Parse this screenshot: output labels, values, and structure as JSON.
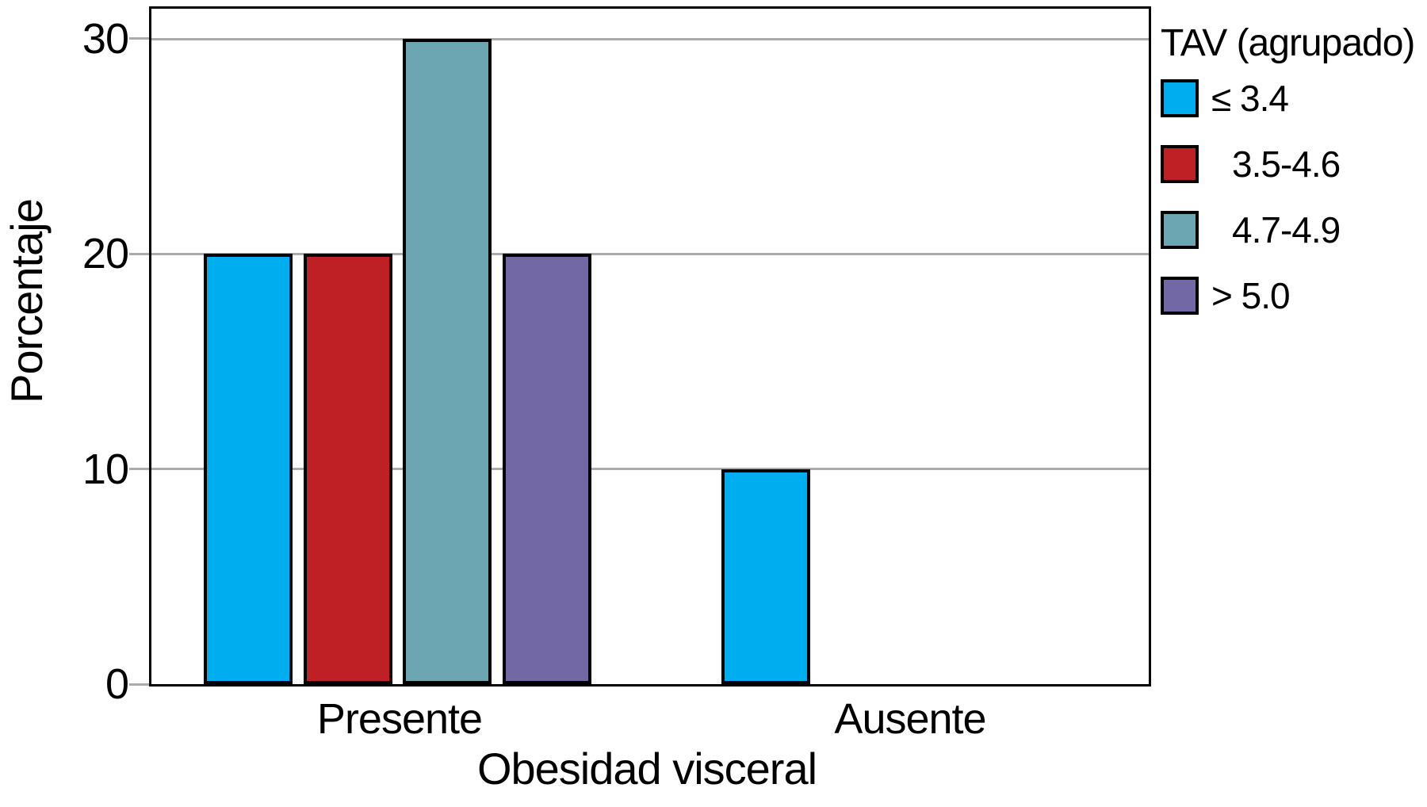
{
  "chart_data": {
    "type": "bar",
    "title": "",
    "xlabel": "Obesidad visceral",
    "ylabel": "Porcentaje",
    "legend_title": "TAV (agrupado)",
    "legend_position": "right",
    "categories": [
      "Presente",
      "Ausente"
    ],
    "series": [
      {
        "name": "≤ 3.4",
        "color": "#00adee",
        "values": [
          20,
          10
        ]
      },
      {
        "name": "3.5-4.6",
        "color": "#be2026",
        "values": [
          20,
          0
        ]
      },
      {
        "name": "4.7-4.9",
        "color": "#6ca6b2",
        "values": [
          30,
          0
        ]
      },
      {
        "name": "> 5.0",
        "color": "#7268a6",
        "values": [
          20,
          0
        ]
      }
    ],
    "y_ticks": [
      0,
      10,
      20,
      30
    ],
    "ylim": [
      0,
      31.4
    ],
    "grid": true,
    "axis_color": "#000000",
    "gridline_color": "#ababab",
    "background_color": "#ffffff"
  }
}
